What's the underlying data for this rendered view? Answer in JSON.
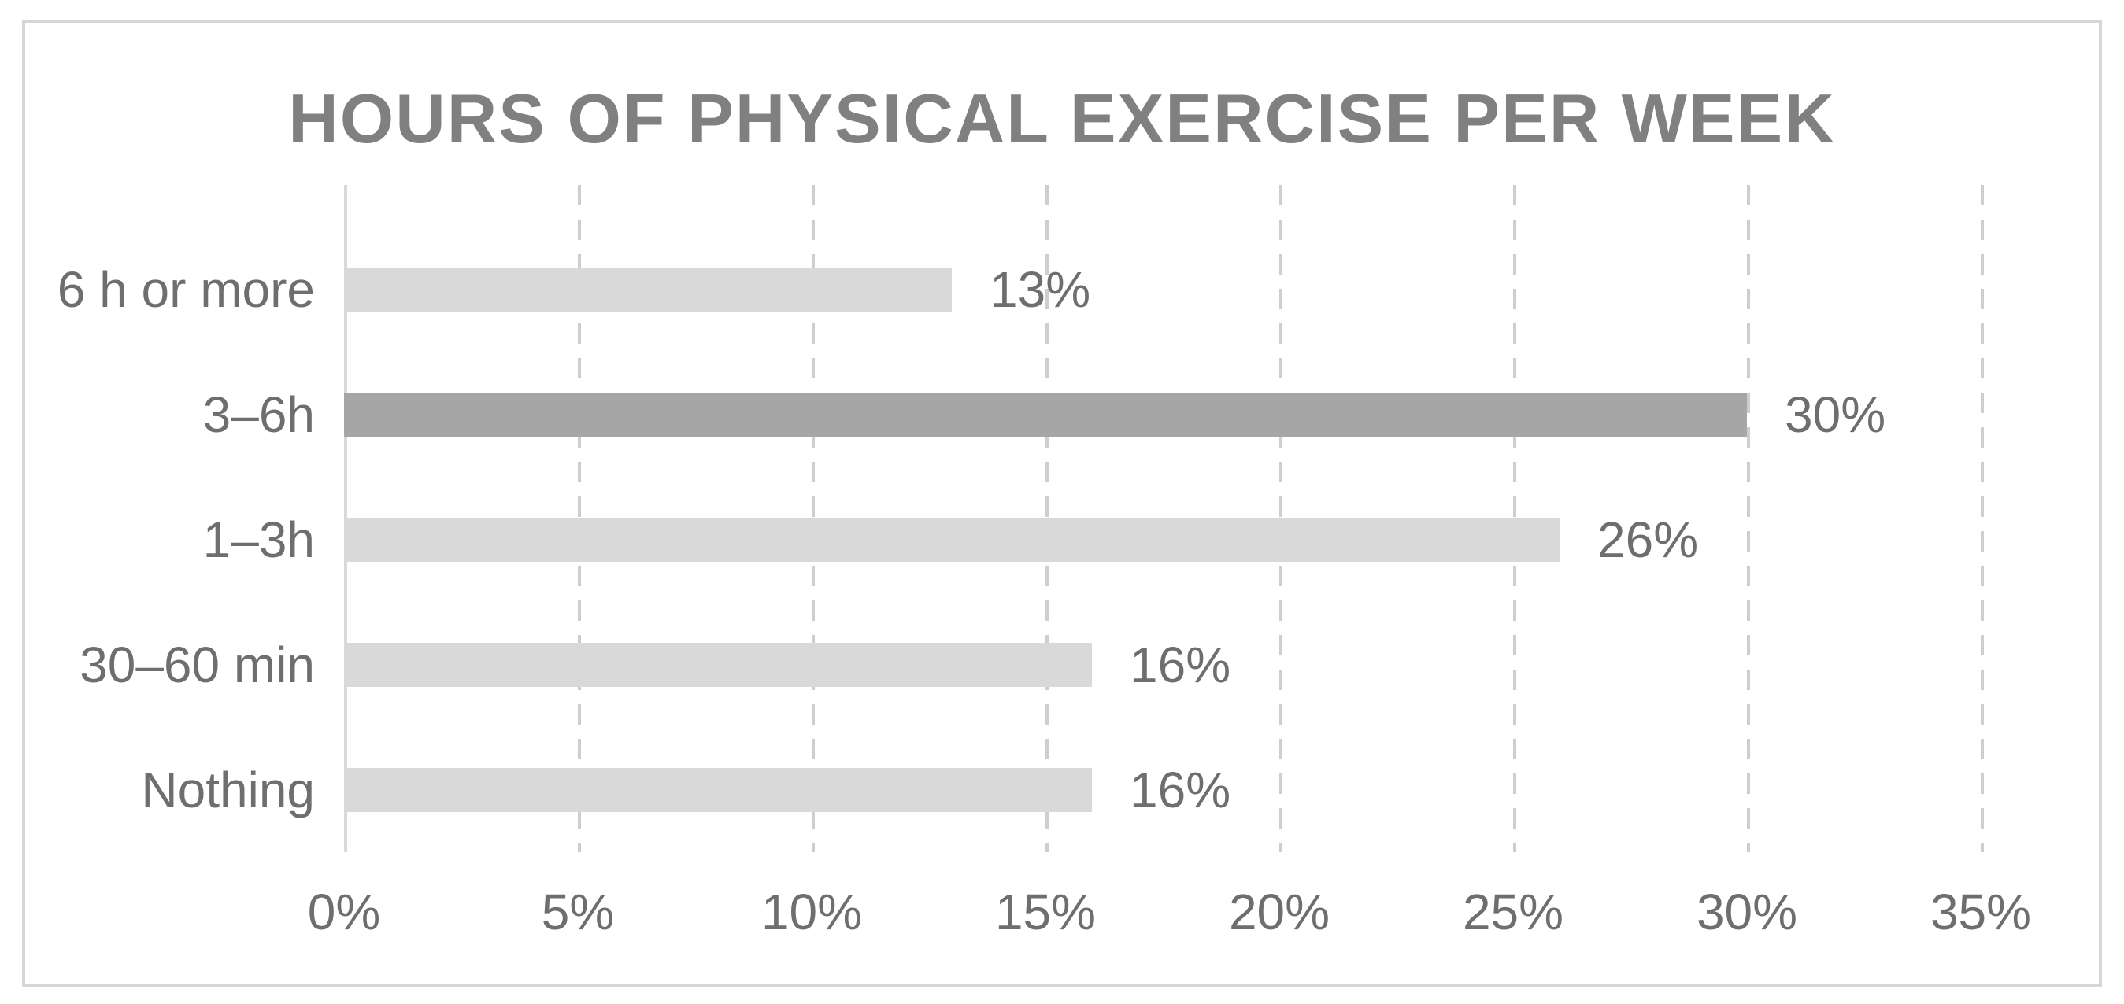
{
  "chart_data": {
    "type": "bar",
    "orientation": "horizontal",
    "title": "HOURS OF PHYSICAL EXERCISE PER WEEK",
    "categories": [
      "6 h or more",
      "3–6h",
      "1–3h",
      "30–60 min",
      "Nothing"
    ],
    "values": [
      13,
      30,
      26,
      16,
      16
    ],
    "value_labels": [
      "13%",
      "30%",
      "26%",
      "16%",
      "16%"
    ],
    "highlight_index": 1,
    "x_ticks": [
      "0%",
      "5%",
      "10%",
      "15%",
      "20%",
      "25%",
      "30%",
      "35%"
    ],
    "x_tick_values": [
      0,
      5,
      10,
      15,
      20,
      25,
      30,
      35
    ],
    "xlim": [
      0,
      36.25
    ],
    "xlabel": "",
    "ylabel": "",
    "legend": "none",
    "grid": "vertical-dashed",
    "colors": {
      "bar": "#d9d9d9",
      "bar_highlight": "#a6a6a6",
      "title_text": "#808080",
      "label_text": "#6e6e6e",
      "gridline": "#cecece",
      "axis_line": "#d9d9d9",
      "frame_border": "#d6d6d6",
      "background": "#ffffff"
    }
  }
}
